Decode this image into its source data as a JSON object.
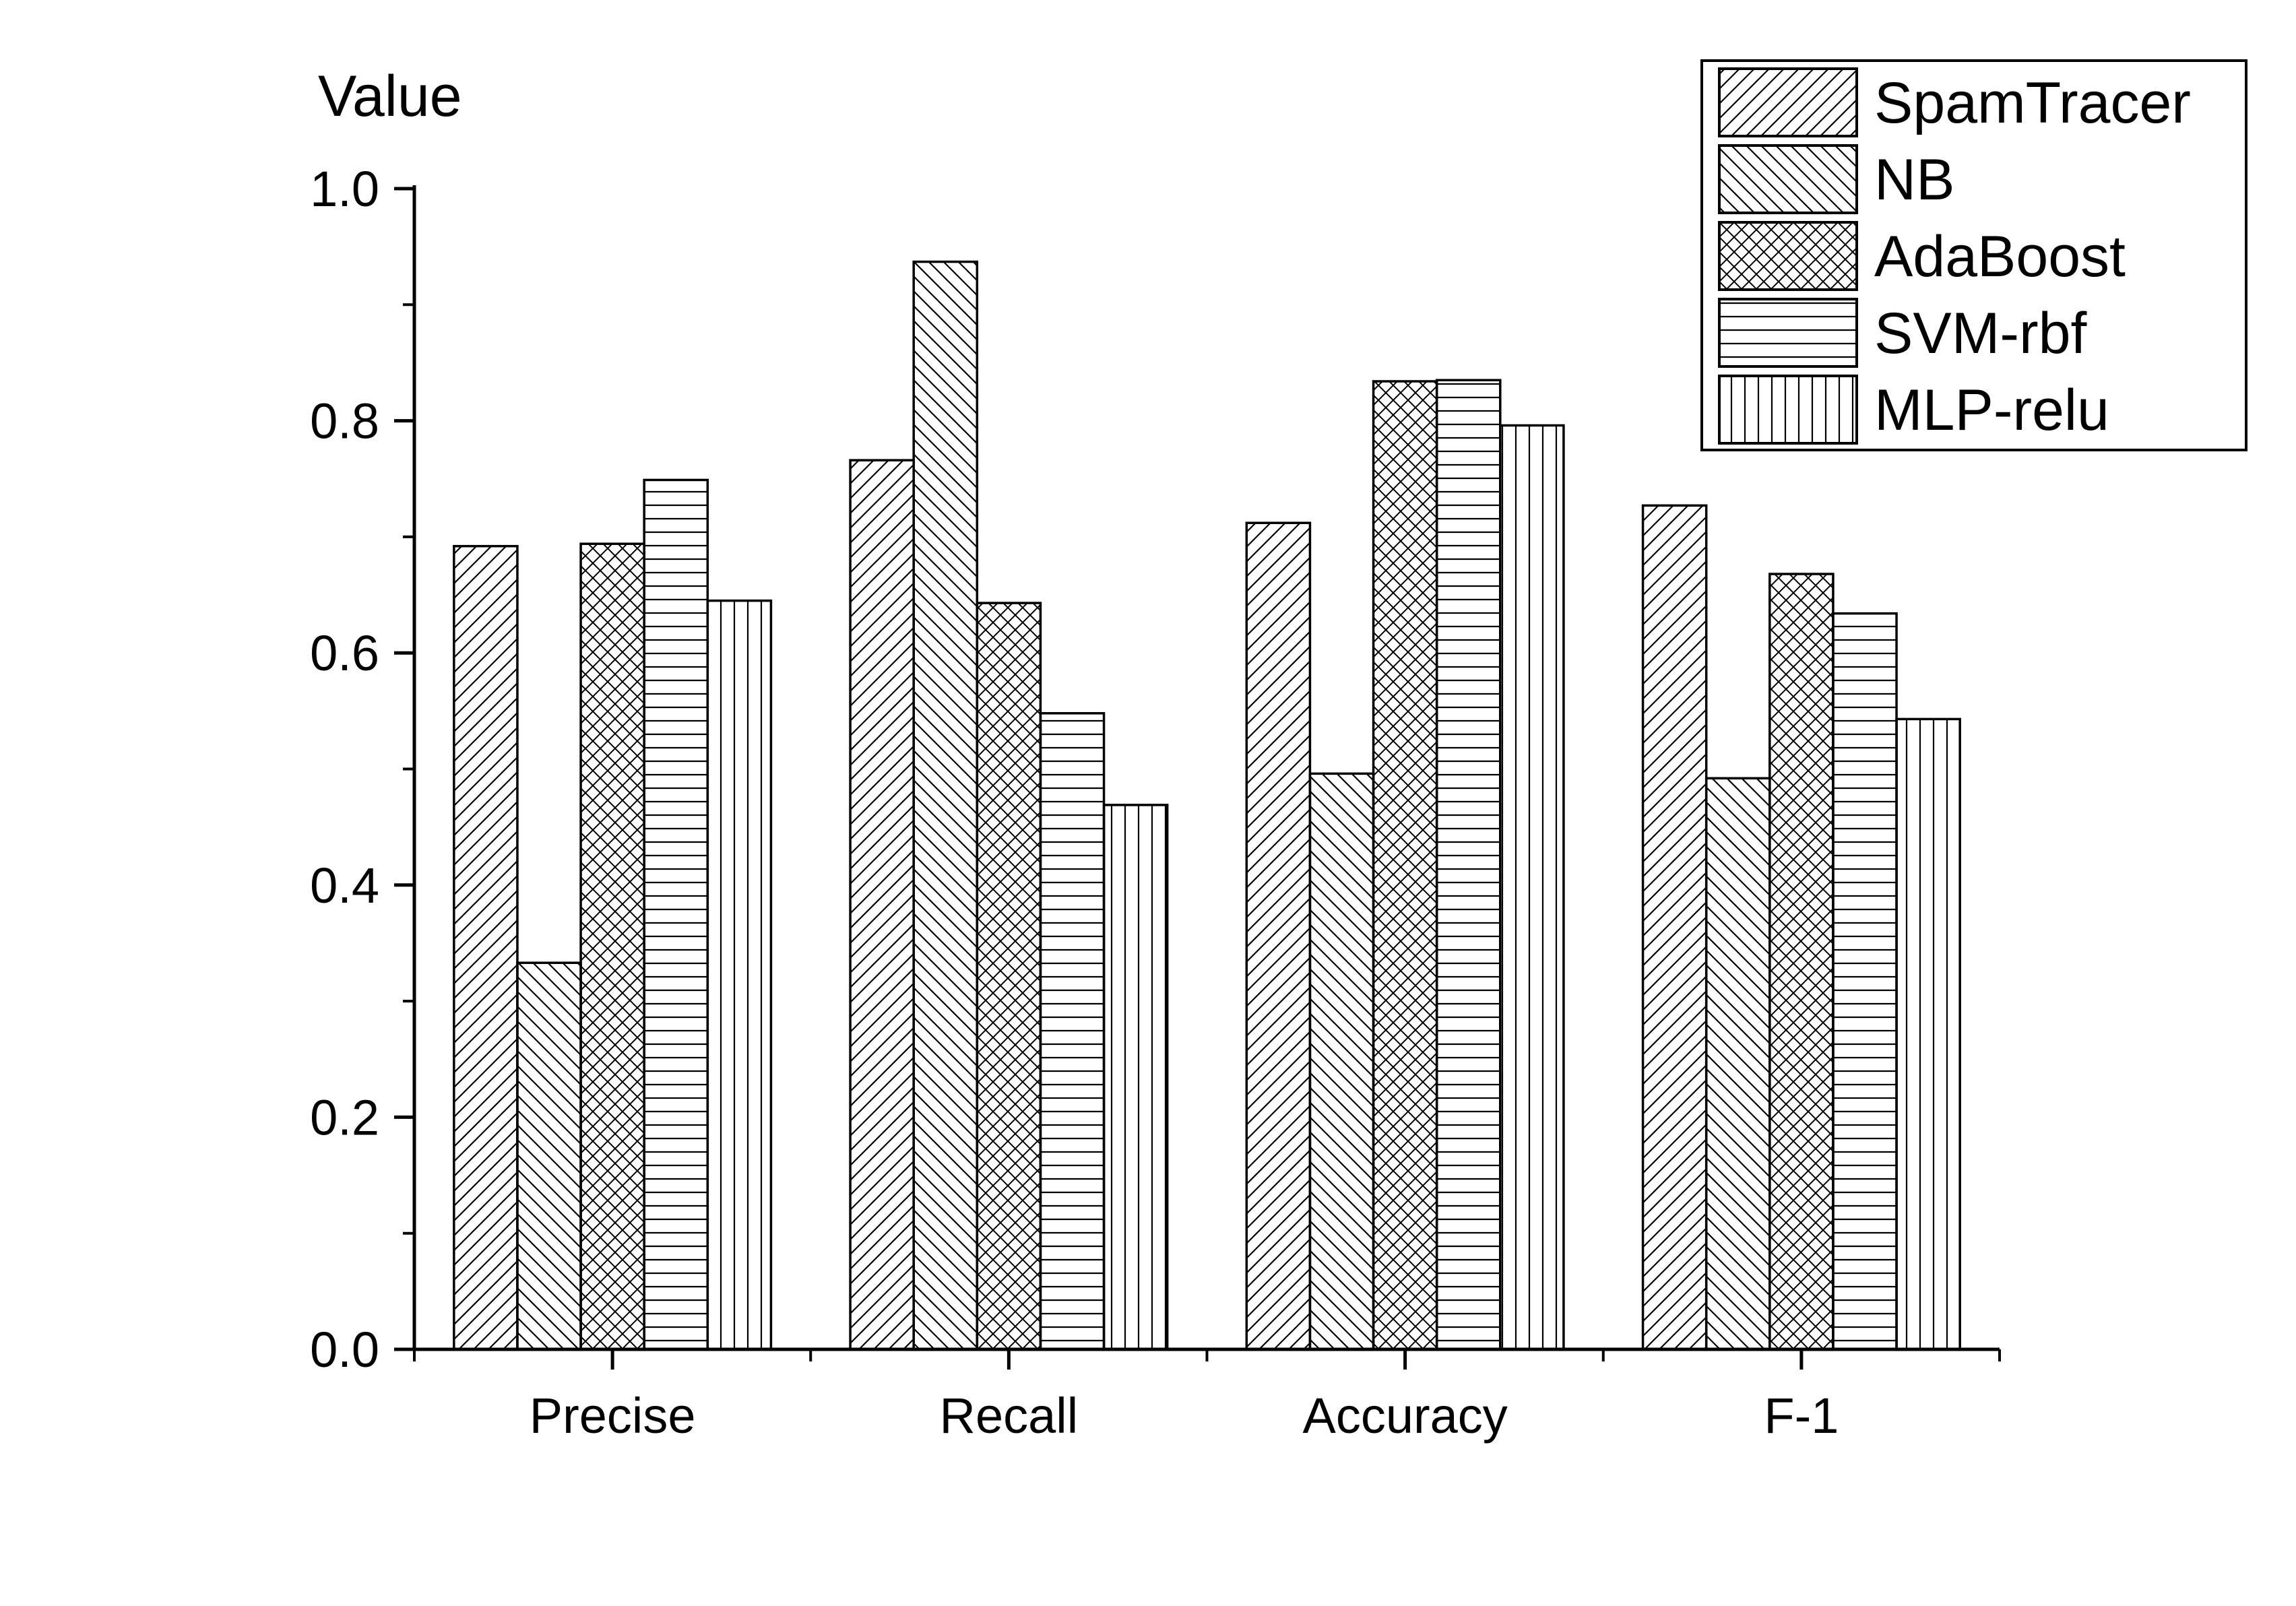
{
  "chart_data": {
    "type": "bar",
    "ylabel": "Value",
    "ylim": [
      0,
      1.0
    ],
    "yticks": [
      "0.0",
      "0.2",
      "0.4",
      "0.6",
      "0.8",
      "1.0"
    ],
    "categories": [
      "Precise",
      "Recall",
      "Accuracy",
      "F-1"
    ],
    "series": [
      {
        "name": "SpamTracer",
        "pattern": "diag-forward",
        "values": [
          0.692,
          0.766,
          0.712,
          0.727
        ]
      },
      {
        "name": "NB",
        "pattern": "diag-back",
        "values": [
          0.333,
          0.937,
          0.496,
          0.492
        ]
      },
      {
        "name": "AdaBoost",
        "pattern": "cross",
        "values": [
          0.694,
          0.643,
          0.834,
          0.668
        ]
      },
      {
        "name": "SVM-rbf",
        "pattern": "horizontal",
        "values": [
          0.749,
          0.548,
          0.835,
          0.634
        ]
      },
      {
        "name": "MLP-relu",
        "pattern": "vertical",
        "values": [
          0.645,
          0.469,
          0.796,
          0.543
        ]
      }
    ],
    "grid": false,
    "legend_position": "top-right",
    "colors": {
      "stroke": "#000000",
      "fill": "#ffffff"
    }
  }
}
